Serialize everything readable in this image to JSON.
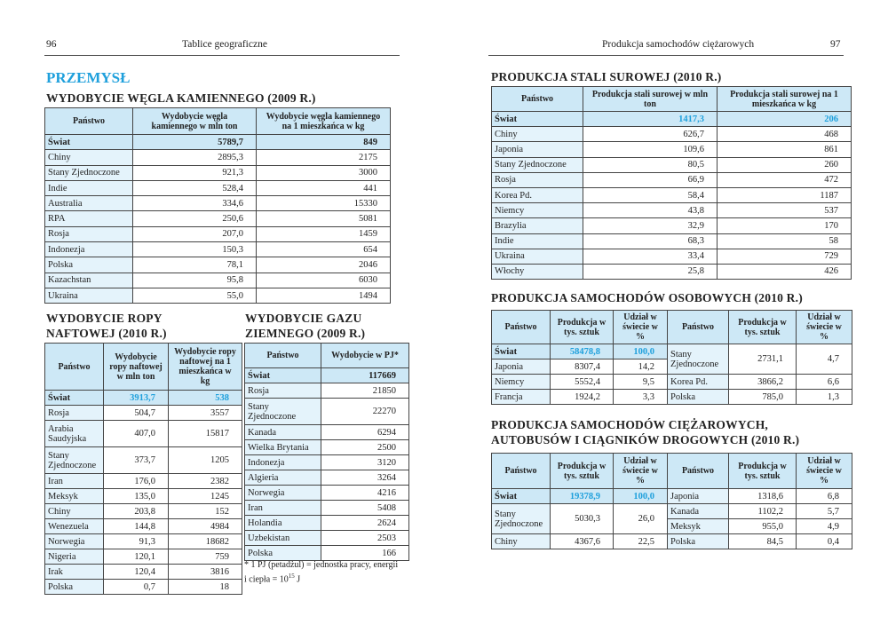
{
  "header": {
    "left_page_number": "96",
    "left_running_title": "Tablice geograficzne",
    "right_running_title": "Produkcja samochodów ciężarowych",
    "right_page_number": "97"
  },
  "section_title": "PRZEMYSŁ",
  "coal": {
    "title": "WYDOBYCIE WĘGLA KAMIENNEGO (2009 R.)",
    "columns": [
      "Państwo",
      "Wydobycie węgla kamiennego w mln ton",
      "Wydobycie węgla kamiennego na 1 mieszkańca w kg"
    ],
    "rows": [
      [
        "Świat",
        "5789,7",
        "849"
      ],
      [
        "Chiny",
        "2895,3",
        "2175"
      ],
      [
        "Stany Zjednoczone",
        "921,3",
        "3000"
      ],
      [
        "Indie",
        "528,4",
        "441"
      ],
      [
        "Australia",
        "334,6",
        "15330"
      ],
      [
        "RPA",
        "250,6",
        "5081"
      ],
      [
        "Rosja",
        "207,0",
        "1459"
      ],
      [
        "Indonezja",
        "150,3",
        "654"
      ],
      [
        "Polska",
        "78,1",
        "2046"
      ],
      [
        "Kazachstan",
        "95,8",
        "6030"
      ],
      [
        "Ukraina",
        "55,0",
        "1494"
      ]
    ]
  },
  "oil": {
    "title": "WYDOBYCIE ROPY NAFTOWEJ (2010 R.)",
    "columns": [
      "Państwo",
      "Wydobycie ropy naftowej w mln ton",
      "Wydobycie ropy naftowej na 1 mieszkańca w kg"
    ],
    "rows": [
      [
        "Świat",
        "3913,7",
        "538"
      ],
      [
        "Rosja",
        "504,7",
        "3557"
      ],
      [
        "Arabia Saudyjska",
        "407,0",
        "15817"
      ],
      [
        "Stany Zjednoczone",
        "373,7",
        "1205"
      ],
      [
        "Iran",
        "176,0",
        "2382"
      ],
      [
        "Meksyk",
        "135,0",
        "1245"
      ],
      [
        "Chiny",
        "203,8",
        "152"
      ],
      [
        "Wenezuela",
        "144,8",
        "4984"
      ],
      [
        "Norwegia",
        "91,3",
        "18682"
      ],
      [
        "Nigeria",
        "120,1",
        "759"
      ],
      [
        "Irak",
        "120,4",
        "3816"
      ],
      [
        "Polska",
        "0,7",
        "18"
      ]
    ]
  },
  "gas": {
    "title": "WYDOBYCIE GAZU ZIEMNEGO (2009 R.)",
    "columns": [
      "Państwo",
      "Wydobycie w PJ*"
    ],
    "rows": [
      [
        "Świat",
        "117669"
      ],
      [
        "Rosja",
        "21850"
      ],
      [
        "Stany Zjednoczone",
        "22270"
      ],
      [
        "Kanada",
        "6294"
      ],
      [
        "Wielka Brytania",
        "2500"
      ],
      [
        "Indonezja",
        "3120"
      ],
      [
        "Algieria",
        "3264"
      ],
      [
        "Norwegia",
        "4216"
      ],
      [
        "Iran",
        "5408"
      ],
      [
        "Holandia",
        "2624"
      ],
      [
        "Uzbekistan",
        "2503"
      ],
      [
        "Polska",
        "166"
      ]
    ],
    "footnote": {
      "text": "* 1 PJ (petadżul) = jednostka pracy, energii i ciepła = 10",
      "exponent": "15",
      "unit": "J"
    }
  },
  "steel": {
    "title": "PRODUKCJA STALI SUROWEJ (2010 R.)",
    "columns": [
      "Państwo",
      "Produkcja stali surowej w mln ton",
      "Produkcja stali surowej na 1 mieszkańca w kg"
    ],
    "rows": [
      [
        "Świat",
        "1417,3",
        "206"
      ],
      [
        "Chiny",
        "626,7",
        "468"
      ],
      [
        "Japonia",
        "109,6",
        "861"
      ],
      [
        "Stany Zjednoczone",
        "80,5",
        "260"
      ],
      [
        "Rosja",
        "66,9",
        "472"
      ],
      [
        "Korea Pd.",
        "58,4",
        "1187"
      ],
      [
        "Niemcy",
        "43,8",
        "537"
      ],
      [
        "Brazylia",
        "32,9",
        "170"
      ],
      [
        "Indie",
        "68,3",
        "58"
      ],
      [
        "Ukraina",
        "33,4",
        "729"
      ],
      [
        "Włochy",
        "25,8",
        "426"
      ]
    ]
  },
  "cars": {
    "title": "PRODUKCJA SAMOCHODÓW OSOBOWYCH (2010 R.)",
    "columns": [
      "Państwo",
      "Produkcja w tys. sztuk",
      "Udział w świecie w %",
      "Państwo",
      "Produkcja w tys. sztuk",
      "Udział w świecie w %"
    ],
    "left_rows": [
      [
        "Świat",
        "58478,8",
        "100,0"
      ],
      [
        "Japonia",
        "8307,4",
        "14,2"
      ],
      [
        "Niemcy",
        "5552,4",
        "9,5"
      ],
      [
        "Francja",
        "1924,2",
        "3,3"
      ]
    ],
    "right_rows": [
      [
        "Stany Zjednoczone",
        "2731,1",
        "4,7"
      ],
      [
        "Korea Pd.",
        "3866,2",
        "6,6"
      ],
      [
        "Polska",
        "785,0",
        "1,3"
      ]
    ]
  },
  "trucks": {
    "title": "PRODUKCJA SAMOCHODÓW CIĘŻAROWYCH, AUTOBUSÓW I CIĄGNIKÓW DROGOWYCH (2010 R.)",
    "columns": [
      "Państwo",
      "Produkcja w tys. sztuk",
      "Udział w świecie w %",
      "Państwo",
      "Produkcja w tys. sztuk",
      "Udział w świecie w %"
    ],
    "left_rows": [
      [
        "Świat",
        "19378,9",
        "100,0"
      ],
      [
        "Stany Zjednoczone",
        "5030,3",
        "26,0"
      ],
      [
        "Chiny",
        "4367,6",
        "22,5"
      ]
    ],
    "right_rows": [
      [
        "Japonia",
        "1318,6",
        "6,8"
      ],
      [
        "Kanada",
        "1102,2",
        "5,7"
      ],
      [
        "Meksyk",
        "955,0",
        "4,9"
      ],
      [
        "Polska",
        "84,5",
        "0,4"
      ]
    ]
  }
}
